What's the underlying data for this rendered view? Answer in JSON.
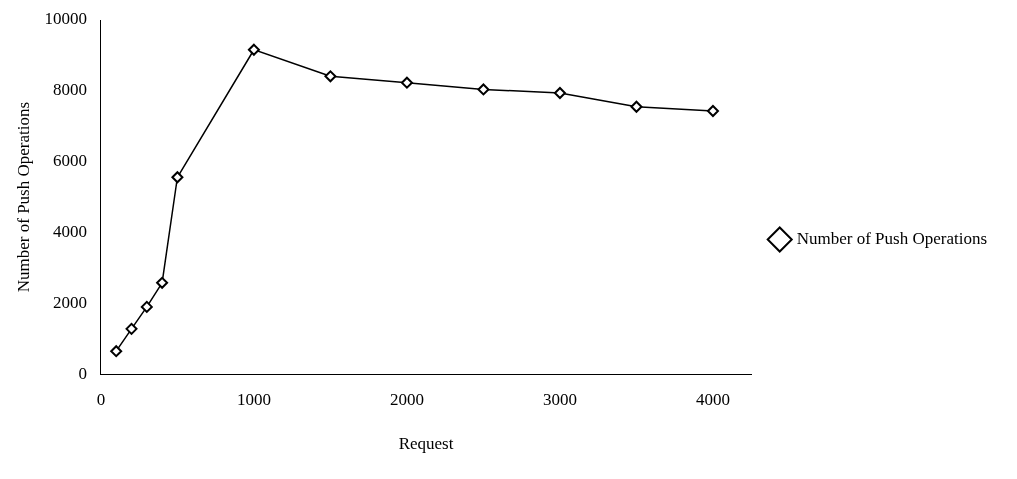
{
  "chart_data": {
    "type": "line",
    "xlabel": "Request",
    "ylabel": "Number of Push Operations",
    "x": [
      100,
      200,
      300,
      400,
      500,
      1000,
      1500,
      2000,
      2500,
      3000,
      3500,
      4000
    ],
    "series": [
      {
        "name": "Number of Push Operations",
        "color": "#000000",
        "values": [
          650,
          1280,
          1900,
          2580,
          5560,
          9160,
          8410,
          8230,
          8040,
          7940,
          7550,
          7430
        ]
      }
    ],
    "xlim": [
      0,
      4250
    ],
    "xticks": [
      0,
      1000,
      2000,
      3000,
      4000
    ],
    "ylim": [
      0,
      10000
    ],
    "yticks": [
      0,
      2000,
      4000,
      6000,
      8000,
      10000
    ],
    "grid": false,
    "legend": "right",
    "marker": "diamond",
    "line_style": "solid"
  }
}
